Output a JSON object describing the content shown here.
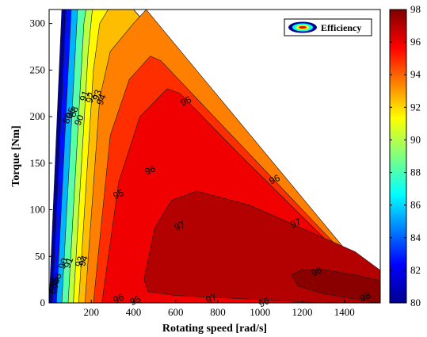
{
  "chart_data": {
    "type": "contour",
    "xlabel": "Rotating speed [rad/s]",
    "ylabel": "Torque [Nm]",
    "xlim": [
      0,
      1570
    ],
    "ylim": [
      0,
      315
    ],
    "xticks": [
      200,
      400,
      600,
      800,
      1000,
      1200,
      1400
    ],
    "yticks": [
      0,
      50,
      100,
      150,
      200,
      250,
      300
    ],
    "legend": {
      "label": "Efficiency",
      "position": "top-right"
    },
    "colorbar": {
      "min": 80,
      "max": 98,
      "ticks": [
        80,
        82,
        84,
        86,
        88,
        90,
        92,
        94,
        96,
        98
      ]
    },
    "contour_levels": [
      80,
      85,
      88,
      90,
      91,
      92,
      93,
      94,
      95,
      96,
      97,
      98
    ],
    "region_boundary": [
      [
        0,
        0
      ],
      [
        60,
        315
      ],
      [
        400,
        315
      ],
      [
        1570,
        12
      ],
      [
        1570,
        0
      ]
    ],
    "peak": {
      "speed": 1300,
      "torque": 28,
      "efficiency": 98.3
    },
    "contour_labels": [
      {
        "text": "95",
        "x": 650,
        "y": 216
      },
      {
        "text": "96",
        "x": 480,
        "y": 142
      },
      {
        "text": "96",
        "x": 1070,
        "y": 132
      },
      {
        "text": "95",
        "x": 330,
        "y": 116
      },
      {
        "text": "97",
        "x": 620,
        "y": 82
      },
      {
        "text": "97",
        "x": 1170,
        "y": 85
      },
      {
        "text": "98",
        "x": 1270,
        "y": 33
      },
      {
        "text": "98",
        "x": 1500,
        "y": 6
      },
      {
        "text": "96",
        "x": 330,
        "y": 4
      },
      {
        "text": "95",
        "x": 410,
        "y": 2
      },
      {
        "text": "97",
        "x": 770,
        "y": 4
      },
      {
        "text": "96",
        "x": 1020,
        "y": 0
      },
      {
        "text": "94",
        "x": 250,
        "y": 218
      },
      {
        "text": "93",
        "x": 230,
        "y": 223
      },
      {
        "text": "92",
        "x": 200,
        "y": 220
      },
      {
        "text": "91",
        "x": 170,
        "y": 222
      },
      {
        "text": "90",
        "x": 145,
        "y": 196
      },
      {
        "text": "88",
        "x": 120,
        "y": 205
      },
      {
        "text": "85",
        "x": 105,
        "y": 204
      },
      {
        "text": "80",
        "x": 90,
        "y": 198
      },
      {
        "text": "94",
        "x": 165,
        "y": 45
      },
      {
        "text": "93",
        "x": 148,
        "y": 44
      },
      {
        "text": "91",
        "x": 95,
        "y": 43
      },
      {
        "text": "90",
        "x": 70,
        "y": 42
      },
      {
        "text": "88",
        "x": 40,
        "y": 26
      },
      {
        "text": "85",
        "x": 28,
        "y": 22
      },
      {
        "text": "80",
        "x": 25,
        "y": 15
      }
    ]
  }
}
